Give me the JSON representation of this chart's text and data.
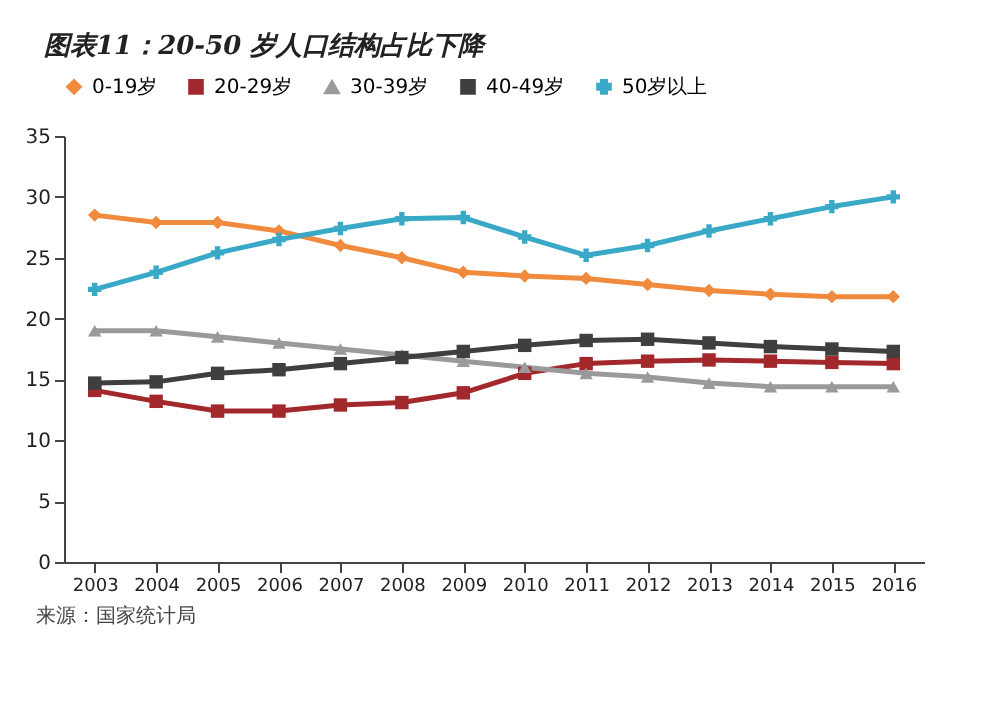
{
  "chart_data": {
    "type": "line",
    "title": "图表11：20-50 岁人口结构占比下降",
    "annotations": [
      "来源：国家统计局"
    ],
    "categories": [
      "2003",
      "2004",
      "2005",
      "2006",
      "2007",
      "2008",
      "2009",
      "2010",
      "2011",
      "2012",
      "2013",
      "2014",
      "2015",
      "2016"
    ],
    "ylim": [
      0,
      35
    ],
    "yticks": [
      0,
      5,
      10,
      15,
      20,
      25,
      30,
      35
    ],
    "grid": false,
    "legend": "top",
    "line_style": "solid",
    "series": [
      {
        "name": "0-19岁",
        "color": "#f08a3c",
        "marker": "diamond",
        "values": [
          28.5,
          27.9,
          27.9,
          27.2,
          26,
          25,
          23.8,
          23.5,
          23.3,
          22.8,
          22.3,
          22,
          21.8,
          21.8
        ]
      },
      {
        "name": "20-29岁",
        "color": "#a3282c",
        "marker": "square",
        "values": [
          14.1,
          13.2,
          12.4,
          12.4,
          12.9,
          13.1,
          13.9,
          15.5,
          16.3,
          16.5,
          16.6,
          16.5,
          16.4,
          16.3
        ]
      },
      {
        "name": "30-39岁",
        "color": "#9a9a9a",
        "marker": "triangle",
        "values": [
          19,
          19,
          18.5,
          18,
          17.5,
          17,
          16.5,
          16,
          15.5,
          15.2,
          14.7,
          14.4,
          14.4,
          14.4
        ]
      },
      {
        "name": "40-49岁",
        "color": "#3f3f3f",
        "marker": "square",
        "values": [
          14.7,
          14.8,
          15.5,
          15.8,
          16.3,
          16.8,
          17.3,
          17.8,
          18.2,
          18.3,
          18,
          17.7,
          17.5,
          17.3
        ]
      },
      {
        "name": "50岁以上",
        "color": "#3aa9c8",
        "marker": "cross",
        "values": [
          22.4,
          23.8,
          25.4,
          26.5,
          27.4,
          28.2,
          28.3,
          26.7,
          25.2,
          26,
          27.2,
          28.2,
          29.2,
          30
        ]
      }
    ]
  }
}
